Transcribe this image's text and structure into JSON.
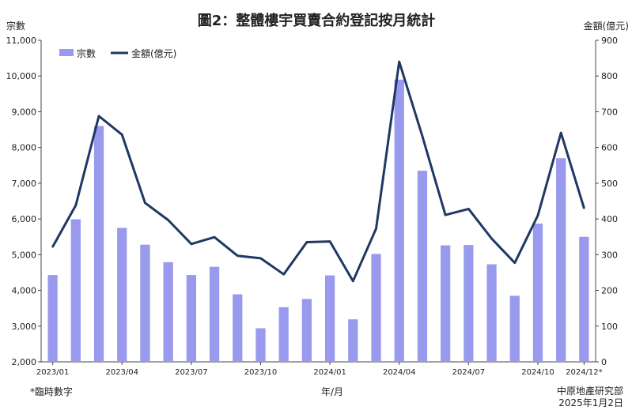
{
  "chart_data": {
    "type": "bar+line",
    "title": "圖2：整體樓宇買賣合約登記按月統計",
    "ylabel_left": "宗數",
    "ylabel_right": "金額(億元)",
    "xlabel": "年/月",
    "ylim_left": [
      2000,
      11000
    ],
    "ylim_right": [
      0,
      900
    ],
    "yticks_left": [
      "2,000",
      "3,000",
      "4,000",
      "5,000",
      "6,000",
      "7,000",
      "8,000",
      "9,000",
      "10,000",
      "11,000"
    ],
    "yticks_right": [
      "0",
      "100",
      "200",
      "300",
      "400",
      "500",
      "600",
      "700",
      "800",
      "900"
    ],
    "categories": [
      "2023/01",
      "2023/02",
      "2023/03",
      "2023/04",
      "2023/05",
      "2023/06",
      "2023/07",
      "2023/08",
      "2023/09",
      "2023/10",
      "2023/11",
      "2023/12",
      "2024/01",
      "2024/02",
      "2024/03",
      "2024/04",
      "2024/05",
      "2024/06",
      "2024/07",
      "2024/08",
      "2024/09",
      "2024/10",
      "2024/11",
      "2024/12*"
    ],
    "xtick_labels": [
      {
        "index": 0,
        "label": "2023/01"
      },
      {
        "index": 3,
        "label": "2023/04"
      },
      {
        "index": 6,
        "label": "2023/07"
      },
      {
        "index": 9,
        "label": "2023/10"
      },
      {
        "index": 12,
        "label": "2024/01"
      },
      {
        "index": 15,
        "label": "2024/04"
      },
      {
        "index": 18,
        "label": "2024/07"
      },
      {
        "index": 21,
        "label": "2024/10"
      },
      {
        "index": 23,
        "label": "2024/12*"
      }
    ],
    "series": [
      {
        "name": "宗數",
        "kind": "bar",
        "axis": "left",
        "color": "#9999ee",
        "values": [
          4430,
          5990,
          8600,
          5750,
          5280,
          4790,
          4430,
          4660,
          3890,
          2940,
          3530,
          3760,
          4420,
          3190,
          5020,
          9900,
          7350,
          5260,
          5270,
          4730,
          3850,
          5870,
          7700,
          5500
        ]
      },
      {
        "name": "金額(億元)",
        "kind": "line",
        "axis": "right",
        "color": "#1f3864",
        "values": [
          322,
          438,
          688,
          636,
          445,
          397,
          330,
          349,
          297,
          290,
          245,
          335,
          337,
          226,
          373,
          840,
          632,
          411,
          428,
          345,
          277,
          410,
          641,
          430
        ]
      }
    ],
    "legend_position": "top-left",
    "grid": false
  },
  "footnote_left": "*臨時數字",
  "source": "中原地產研究部",
  "date": "2025年1月2日"
}
